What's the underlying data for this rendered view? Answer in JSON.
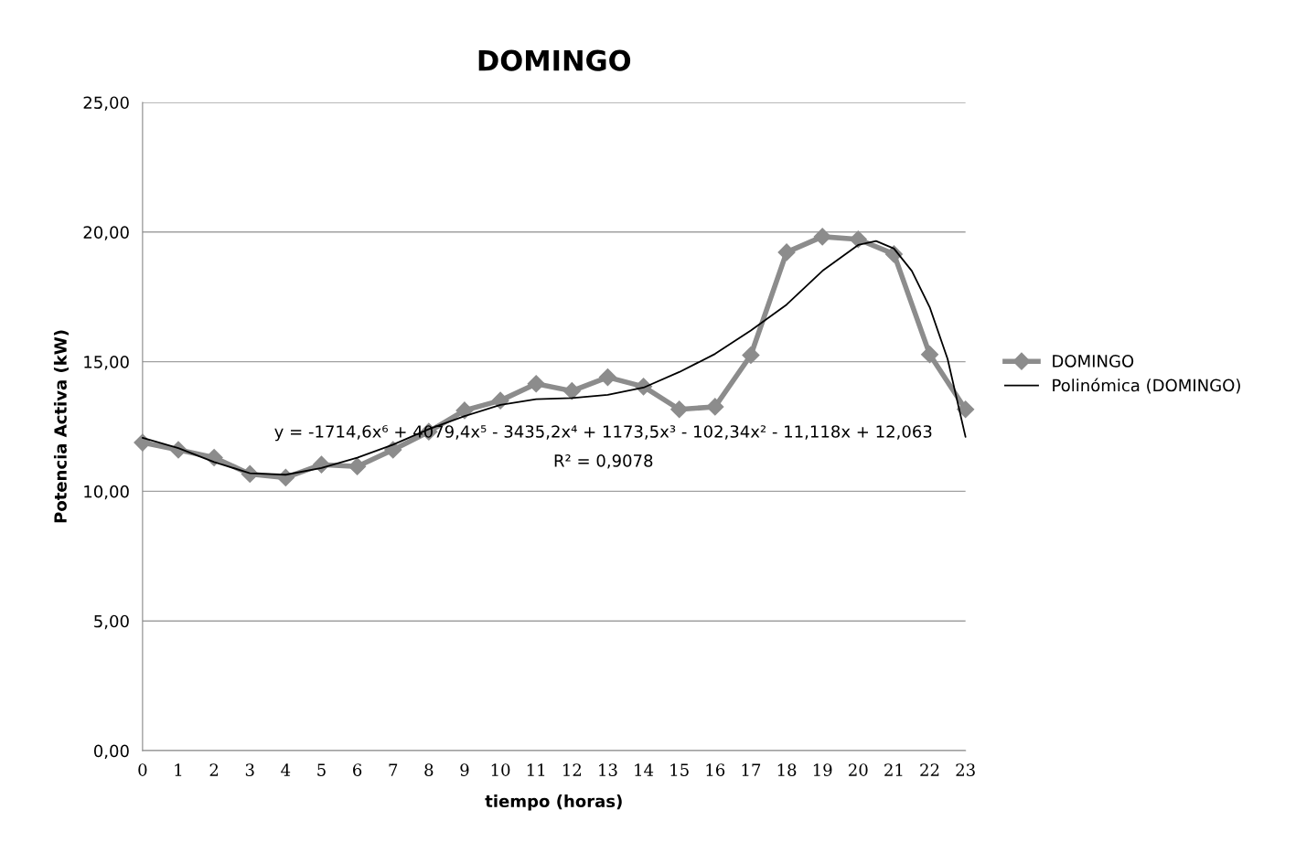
{
  "chart_data": {
    "type": "line",
    "title": "DOMINGO",
    "xlabel": "tiempo (horas)",
    "ylabel": "Potencia Activa (kW)",
    "x": [
      0,
      1,
      2,
      3,
      4,
      5,
      6,
      7,
      8,
      9,
      10,
      11,
      12,
      13,
      14,
      15,
      16,
      17,
      18,
      19,
      20,
      21,
      22,
      23
    ],
    "series": [
      {
        "name": "DOMINGO",
        "color": "#8c8c8c",
        "marker": "diamond",
        "values": [
          11.88,
          11.6,
          11.3,
          10.67,
          10.53,
          11.03,
          10.96,
          11.6,
          12.3,
          13.12,
          13.5,
          14.15,
          13.87,
          14.4,
          14.04,
          13.16,
          13.26,
          15.25,
          19.22,
          19.82,
          19.72,
          19.15,
          15.28,
          13.16
        ]
      },
      {
        "name": "Polinómica (DOMINGO)",
        "color": "#000000",
        "marker": "none",
        "x": [
          0,
          1,
          2,
          3,
          4,
          5,
          6,
          7,
          8,
          9,
          10,
          11,
          12,
          13,
          14,
          15,
          16,
          17,
          18,
          19,
          20,
          20.5,
          21,
          21.5,
          22,
          22.5,
          23
        ],
        "values": [
          12.06,
          11.67,
          11.13,
          10.7,
          10.64,
          10.9,
          11.3,
          11.8,
          12.4,
          12.9,
          13.33,
          13.55,
          13.6,
          13.72,
          14.0,
          14.6,
          15.3,
          16.2,
          17.2,
          18.5,
          19.5,
          19.65,
          19.36,
          18.5,
          17.1,
          15.1,
          12.1
        ]
      }
    ],
    "xlim": [
      0,
      23
    ],
    "xticks": [
      0,
      1,
      2,
      3,
      4,
      5,
      6,
      7,
      8,
      9,
      10,
      11,
      12,
      13,
      14,
      15,
      16,
      17,
      18,
      19,
      20,
      21,
      22,
      23
    ],
    "ylim": [
      0,
      25
    ],
    "yticks": [
      {
        "value": 0,
        "label": "0,00"
      },
      {
        "value": 5,
        "label": "5,00"
      },
      {
        "value": 10,
        "label": "10,00"
      },
      {
        "value": 15,
        "label": "15,00"
      },
      {
        "value": 20,
        "label": "20,00"
      },
      {
        "value": 25,
        "label": "25,00"
      }
    ],
    "grid": "y",
    "legend": "right",
    "annotations": [
      "y = -1714,6x⁶ + 4079,4x⁵ - 3435,2x⁴ + 1173,5x³ - 102,34x² - 11,118x + 12,063",
      "R² = 0,9078"
    ]
  }
}
